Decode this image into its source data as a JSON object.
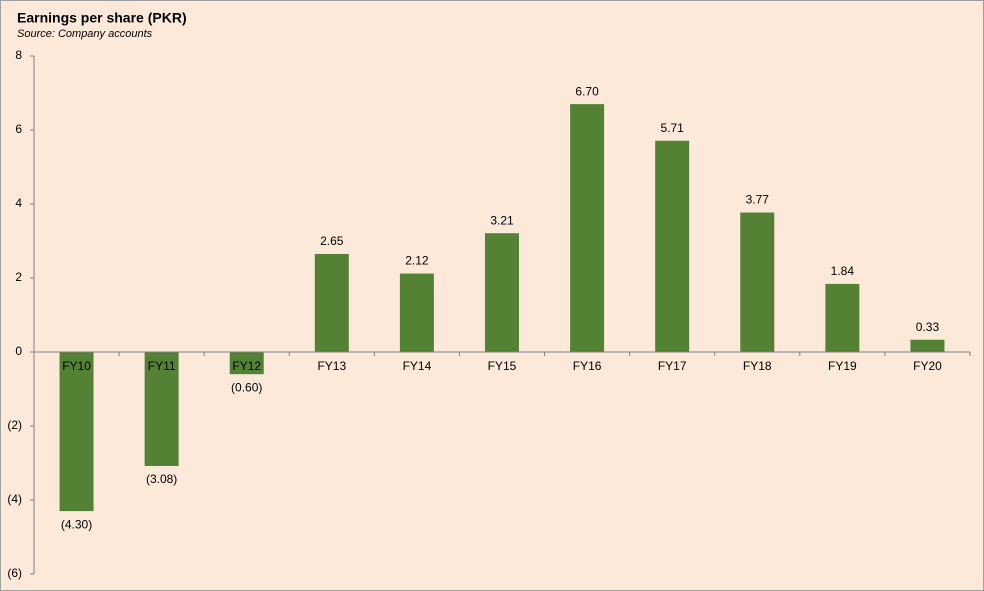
{
  "chart_data": {
    "type": "bar",
    "title": "Earnings per share (PKR)",
    "subtitle": "Source: Company accounts",
    "categories": [
      "FY10",
      "FY11",
      "FY12",
      "FY13",
      "FY14",
      "FY15",
      "FY16",
      "FY17",
      "FY18",
      "FY19",
      "FY20"
    ],
    "values": [
      -4.3,
      -3.08,
      -0.6,
      2.65,
      2.12,
      3.21,
      6.7,
      5.71,
      3.77,
      1.84,
      0.33
    ],
    "value_labels": [
      "(4.30)",
      "(3.08)",
      "(0.60)",
      "2.65",
      "2.12",
      "3.21",
      "6.70",
      "5.71",
      "3.77",
      "1.84",
      "0.33"
    ],
    "color": "#548235",
    "ylim": [
      -6,
      8
    ],
    "yticks": [
      {
        "value": -6,
        "label": "(6)"
      },
      {
        "value": -4,
        "label": "(4)"
      },
      {
        "value": -2,
        "label": "(2)"
      },
      0,
      2,
      4,
      6,
      8
    ],
    "grid": false
  }
}
